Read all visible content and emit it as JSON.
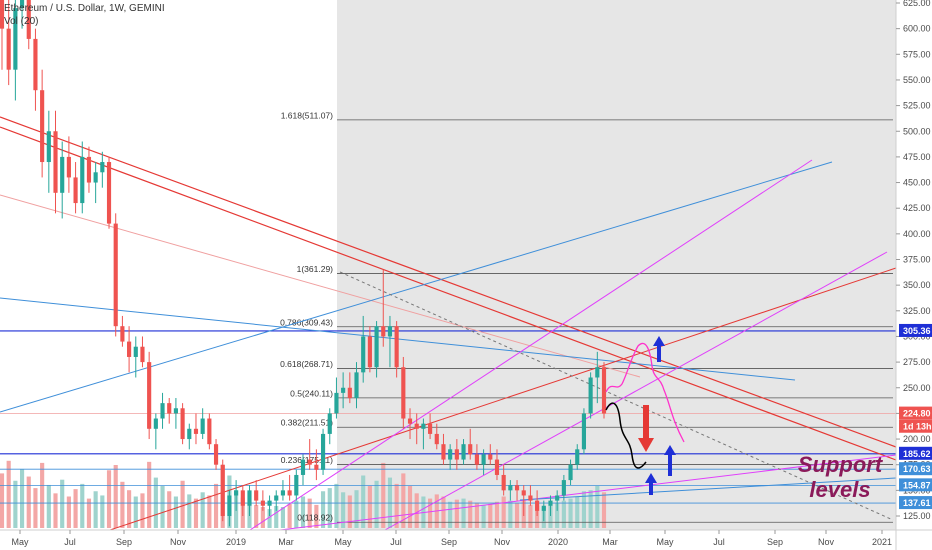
{
  "legend": {
    "symbol_line": "Ethereum / U.S. Dollar, 1W, GEMINI",
    "volume_line": "Vol (20)"
  },
  "annotation": {
    "line1": "Support",
    "line2": "levels"
  },
  "colors": {
    "up": "#26a69a",
    "down": "#ef5350",
    "up_vol": "#9fd3cd",
    "down_vol": "#f3a7a6",
    "shade": "#e6e6e6",
    "fib_line": "#555555",
    "trend_red": "#e53935",
    "trend_blue": "#3f8fd9",
    "trend_magenta": "#e040fb",
    "support_blue": "#1e2fd6",
    "annotation": "#8b1a5a"
  },
  "chart_data": {
    "type": "candlestick",
    "symbol": "Ethereum / U.S. Dollar",
    "interval": "1W",
    "exchange": "GEMINI",
    "y_axis_ticks": [
      "625.00",
      "600.00",
      "575.00",
      "550.00",
      "525.00",
      "500.00",
      "475.00",
      "450.00",
      "425.00",
      "400.00",
      "375.00",
      "350.00",
      "325.00",
      "300.00",
      "275.00",
      "250.00",
      "225.00",
      "200.00",
      "175.00",
      "150.00",
      "125.00"
    ],
    "ylim": [
      113,
      630
    ],
    "x_axis_ticks": [
      "May",
      "Jul",
      "Sep",
      "Nov",
      "2019",
      "Mar",
      "May",
      "Jul",
      "Sep",
      "Nov",
      "2020",
      "Mar",
      "May",
      "Jul",
      "Sep",
      "Nov",
      "2021"
    ],
    "fib_levels": [
      {
        "label": "1.618(511.07)",
        "value": 511.07
      },
      {
        "label": "1(361.29)",
        "value": 361.29
      },
      {
        "label": "0.786(309.43)",
        "value": 309.43
      },
      {
        "label": "0.618(268.71)",
        "value": 268.71
      },
      {
        "label": "0.5(240.11)",
        "value": 240.11
      },
      {
        "label": "0.382(211.51)",
        "value": 211.51
      },
      {
        "label": "0.236(175.11)",
        "value": 175.11
      },
      {
        "label": "0(118.92)",
        "value": 118.92
      }
    ],
    "price_badges": [
      {
        "label": "305.36",
        "value": 305.36,
        "color": "#1e2fd6"
      },
      {
        "label": "224.80",
        "value": 224.8,
        "color": "#ef5350"
      },
      {
        "label": "1d 13h",
        "value": 212,
        "color": "#ef5350"
      },
      {
        "label": "185.62",
        "value": 185.62,
        "color": "#1e2fd6"
      },
      {
        "label": "170.63",
        "value": 170.63,
        "color": "#3f8fd9"
      },
      {
        "label": "154.87",
        "value": 154.87,
        "color": "#3f8fd9"
      },
      {
        "label": "137.61",
        "value": 137.61,
        "color": "#3f8fd9"
      }
    ],
    "candles": [
      [
        640,
        690,
        560,
        600
      ],
      [
        600,
        640,
        545,
        560
      ],
      [
        560,
        640,
        530,
        620
      ],
      [
        620,
        680,
        600,
        660
      ],
      [
        660,
        700,
        580,
        590
      ],
      [
        590,
        600,
        520,
        540
      ],
      [
        540,
        560,
        455,
        470
      ],
      [
        470,
        520,
        440,
        500
      ],
      [
        500,
        520,
        420,
        440
      ],
      [
        440,
        490,
        415,
        475
      ],
      [
        475,
        495,
        440,
        455
      ],
      [
        455,
        470,
        420,
        430
      ],
      [
        430,
        490,
        420,
        475
      ],
      [
        475,
        485,
        440,
        450
      ],
      [
        450,
        470,
        430,
        460
      ],
      [
        460,
        480,
        445,
        470
      ],
      [
        470,
        475,
        405,
        410
      ],
      [
        410,
        420,
        300,
        310
      ],
      [
        310,
        320,
        290,
        295
      ],
      [
        295,
        310,
        265,
        280
      ],
      [
        280,
        300,
        260,
        290
      ],
      [
        290,
        300,
        270,
        275
      ],
      [
        275,
        285,
        200,
        210
      ],
      [
        210,
        225,
        190,
        220
      ],
      [
        220,
        245,
        210,
        235
      ],
      [
        235,
        240,
        215,
        225
      ],
      [
        225,
        240,
        210,
        230
      ],
      [
        230,
        235,
        195,
        200
      ],
      [
        200,
        215,
        190,
        210
      ],
      [
        210,
        225,
        195,
        205
      ],
      [
        205,
        230,
        200,
        220
      ],
      [
        220,
        225,
        190,
        195
      ],
      [
        195,
        200,
        170,
        175
      ],
      [
        175,
        180,
        120,
        125
      ],
      [
        125,
        150,
        115,
        145
      ],
      [
        145,
        160,
        130,
        150
      ],
      [
        150,
        155,
        125,
        135
      ],
      [
        135,
        155,
        125,
        150
      ],
      [
        150,
        160,
        135,
        140
      ],
      [
        140,
        150,
        130,
        135
      ],
      [
        135,
        145,
        125,
        140
      ],
      [
        140,
        150,
        130,
        145
      ],
      [
        145,
        160,
        140,
        150
      ],
      [
        150,
        165,
        140,
        145
      ],
      [
        145,
        170,
        140,
        165
      ],
      [
        165,
        185,
        155,
        180
      ],
      [
        180,
        200,
        170,
        175
      ],
      [
        175,
        190,
        160,
        170
      ],
      [
        170,
        210,
        165,
        205
      ],
      [
        205,
        230,
        195,
        225
      ],
      [
        225,
        260,
        220,
        245
      ],
      [
        245,
        265,
        230,
        250
      ],
      [
        250,
        265,
        235,
        240
      ],
      [
        240,
        275,
        230,
        265
      ],
      [
        265,
        320,
        255,
        300
      ],
      [
        300,
        310,
        265,
        270
      ],
      [
        270,
        315,
        260,
        310
      ],
      [
        310,
        365,
        290,
        300
      ],
      [
        300,
        320,
        270,
        310
      ],
      [
        310,
        315,
        260,
        270
      ],
      [
        270,
        280,
        210,
        220
      ],
      [
        220,
        230,
        200,
        215
      ],
      [
        215,
        225,
        195,
        210
      ],
      [
        210,
        220,
        190,
        215
      ],
      [
        215,
        225,
        200,
        205
      ],
      [
        205,
        215,
        190,
        195
      ],
      [
        195,
        205,
        175,
        180
      ],
      [
        180,
        195,
        170,
        190
      ],
      [
        190,
        200,
        170,
        180
      ],
      [
        180,
        200,
        175,
        195
      ],
      [
        195,
        210,
        180,
        185
      ],
      [
        185,
        195,
        170,
        175
      ],
      [
        175,
        190,
        165,
        185
      ],
      [
        185,
        195,
        175,
        180
      ],
      [
        180,
        190,
        160,
        165
      ],
      [
        165,
        175,
        145,
        150
      ],
      [
        150,
        160,
        140,
        155
      ],
      [
        155,
        160,
        140,
        150
      ],
      [
        150,
        155,
        125,
        145
      ],
      [
        145,
        155,
        135,
        140
      ],
      [
        140,
        150,
        125,
        130
      ],
      [
        130,
        140,
        120,
        135
      ],
      [
        135,
        145,
        125,
        140
      ],
      [
        140,
        150,
        130,
        145
      ],
      [
        145,
        165,
        140,
        160
      ],
      [
        160,
        180,
        155,
        175
      ],
      [
        175,
        195,
        170,
        190
      ],
      [
        190,
        230,
        185,
        225
      ],
      [
        225,
        265,
        220,
        260
      ],
      [
        260,
        285,
        235,
        270
      ],
      [
        270,
        275,
        220,
        225
      ]
    ],
    "volume": [
      0.52,
      0.64,
      0.45,
      0.56,
      0.49,
      0.38,
      0.62,
      0.41,
      0.33,
      0.46,
      0.3,
      0.37,
      0.42,
      0.28,
      0.35,
      0.31,
      0.55,
      0.6,
      0.44,
      0.36,
      0.3,
      0.33,
      0.63,
      0.48,
      0.4,
      0.35,
      0.3,
      0.45,
      0.32,
      0.28,
      0.34,
      0.31,
      0.42,
      0.6,
      0.5,
      0.36,
      0.29,
      0.24,
      0.22,
      0.2,
      0.18,
      0.21,
      0.2,
      0.23,
      0.26,
      0.3,
      0.28,
      0.22,
      0.35,
      0.38,
      0.42,
      0.34,
      0.31,
      0.36,
      0.5,
      0.4,
      0.45,
      0.62,
      0.48,
      0.42,
      0.52,
      0.4,
      0.33,
      0.3,
      0.28,
      0.32,
      0.3,
      0.25,
      0.27,
      0.28,
      0.26,
      0.24,
      0.22,
      0.23,
      0.25,
      0.3,
      0.26,
      0.24,
      0.27,
      0.22,
      0.21,
      0.2,
      0.22,
      0.24,
      0.26,
      0.28,
      0.3,
      0.35,
      0.36,
      0.4,
      0.34
    ]
  }
}
